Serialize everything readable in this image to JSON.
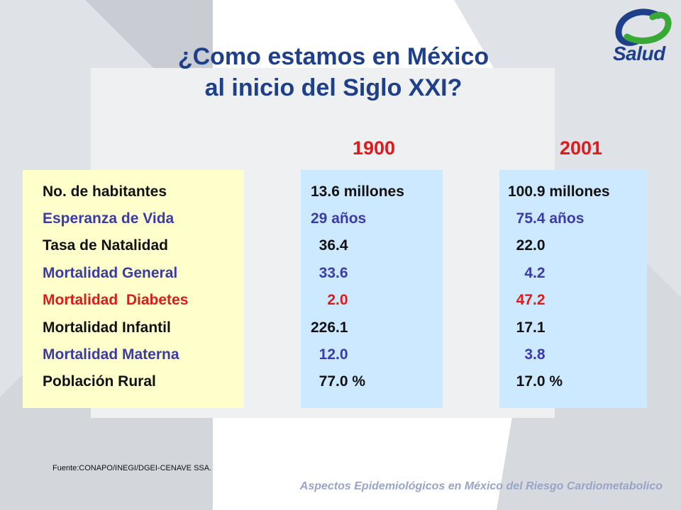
{
  "title": {
    "line1": "¿Como estamos en México",
    "line2": "al inicio del Siglo XXI?"
  },
  "logo": {
    "text": "Salud",
    "icon": "salud-swirl-icon"
  },
  "headers": {
    "col1900": "1900",
    "col2001": "2001"
  },
  "rows": [
    {
      "label": "No. de habitantes",
      "v1900": "13.6 millones",
      "v2001": "100.9 millones",
      "color": "black"
    },
    {
      "label": "Esperanza de Vida",
      "v1900": "29 años",
      "v2001": "  75.4 años",
      "color": "blue"
    },
    {
      "label": "Tasa de Natalidad",
      "v1900": "  36.4",
      "v2001": "  22.0",
      "color": "black"
    },
    {
      "label": "Mortalidad General",
      "v1900": "  33.6",
      "v2001": "    4.2",
      "color": "blue"
    },
    {
      "label": "Mortalidad  Diabetes",
      "v1900": "    2.0",
      "v2001": "  47.2",
      "color": "red"
    },
    {
      "label": "Mortalidad Infantil",
      "v1900": "226.1",
      "v2001": "  17.1",
      "color": "black"
    },
    {
      "label": "Mortalidad Materna",
      "v1900": "  12.0",
      "v2001": "    3.8",
      "color": "blue"
    },
    {
      "label": "Población Rural",
      "v1900": "  77.0 %",
      "v2001": "  17.0 %",
      "color": "black"
    }
  ],
  "source": "Fuente:CONAPO/INEGI/DGEI-CENAVE  SSA.",
  "footer": "Aspectos Epidemiológicos en México del Riesgo Cardiometabolico",
  "colors": {
    "title": "#1e3f8a",
    "red": "#e2191b",
    "blue": "#3a3aa8",
    "labelPanel": "#ffffcc",
    "valuePanel": "#cde9ff"
  }
}
